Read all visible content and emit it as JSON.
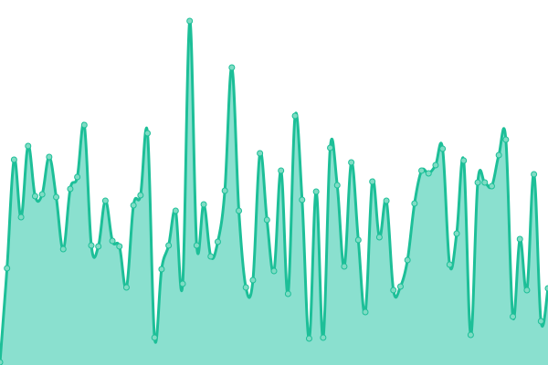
{
  "chart_data": {
    "type": "area",
    "title": "",
    "xlabel": "",
    "ylabel": "",
    "ylim": [
      0,
      400
    ],
    "grid": false,
    "legend": "none",
    "smooth": true,
    "show_points": true,
    "colors": {
      "line": "#1dbf98",
      "fill": "#8ae0cf",
      "point_fill": "#7fdcc4",
      "point_stroke": "#1dbf98"
    },
    "values": [
      3,
      106,
      225,
      162,
      240,
      185,
      187,
      228,
      184,
      127,
      193,
      206,
      263,
      131,
      130,
      180,
      136,
      130,
      85,
      175,
      186,
      254,
      30,
      105,
      131,
      169,
      89,
      377,
      131,
      176,
      119,
      135,
      191,
      326,
      169,
      85,
      93,
      232,
      159,
      103,
      213,
      78,
      273,
      181,
      29,
      190,
      30,
      238,
      197,
      108,
      222,
      137,
      58,
      201,
      140,
      180,
      82,
      86,
      115,
      177,
      213,
      210,
      219,
      237,
      110,
      144,
      224,
      33,
      200,
      200,
      196,
      230,
      247,
      53,
      138,
      82,
      209,
      48,
      84
    ]
  }
}
